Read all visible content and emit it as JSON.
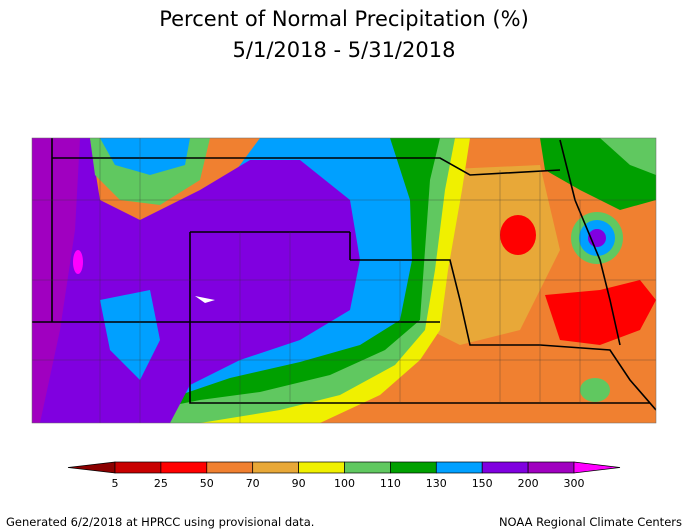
{
  "header": {
    "title": "Percent of Normal Precipitation (%)",
    "subtitle": "5/1/2018 - 5/31/2018"
  },
  "legend": {
    "labels": [
      5,
      25,
      50,
      70,
      90,
      100,
      110,
      130,
      150,
      200,
      300
    ],
    "colors": [
      "#8b0000",
      "#c80000",
      "#ff0000",
      "#f08030",
      "#e8a838",
      "#f0f000",
      "#60c860",
      "#00a000",
      "#00a0ff",
      "#8000e0",
      "#a000c0",
      "#ff00ff"
    ]
  },
  "footer": {
    "left": "Generated 6/2/2018 at HPRCC using provisional data.",
    "right": "NOAA Regional Climate Centers"
  }
}
